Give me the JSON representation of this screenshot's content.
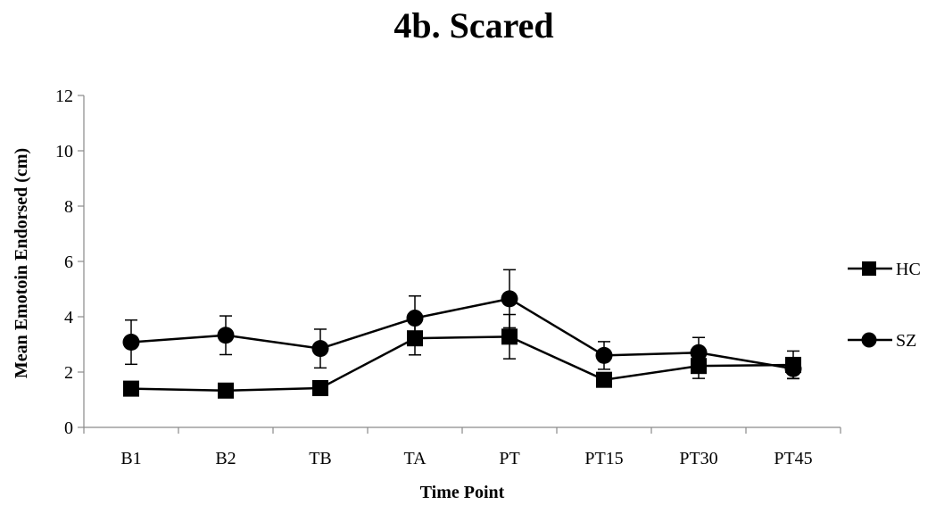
{
  "chart_data": {
    "type": "line",
    "title": "4b. Scared",
    "xlabel": "Time Point",
    "ylabel": "Mean Emotoin Endorsed (cm)",
    "categories": [
      "B1",
      "B2",
      "TB",
      "TA",
      "PT",
      "PT15",
      "PT30",
      "PT45"
    ],
    "ylim": [
      0,
      12
    ],
    "yticks": [
      "0",
      "2",
      "4",
      "6",
      "8",
      "10",
      "12"
    ],
    "grid": false,
    "legend_position": "right",
    "series": [
      {
        "name": "HC",
        "marker": "square",
        "color": "#000000",
        "values": [
          1.4,
          1.33,
          1.42,
          3.22,
          3.28,
          1.72,
          2.22,
          2.26
        ],
        "errors": [
          0.0,
          0.0,
          0.0,
          0.6,
          0.8,
          0.25,
          0.45,
          0.5
        ]
      },
      {
        "name": "SZ",
        "marker": "circle",
        "color": "#000000",
        "values": [
          3.08,
          3.33,
          2.85,
          3.95,
          4.65,
          2.6,
          2.7,
          2.12
        ],
        "errors": [
          0.8,
          0.7,
          0.7,
          0.8,
          1.05,
          0.5,
          0.55,
          0.35
        ]
      }
    ]
  }
}
